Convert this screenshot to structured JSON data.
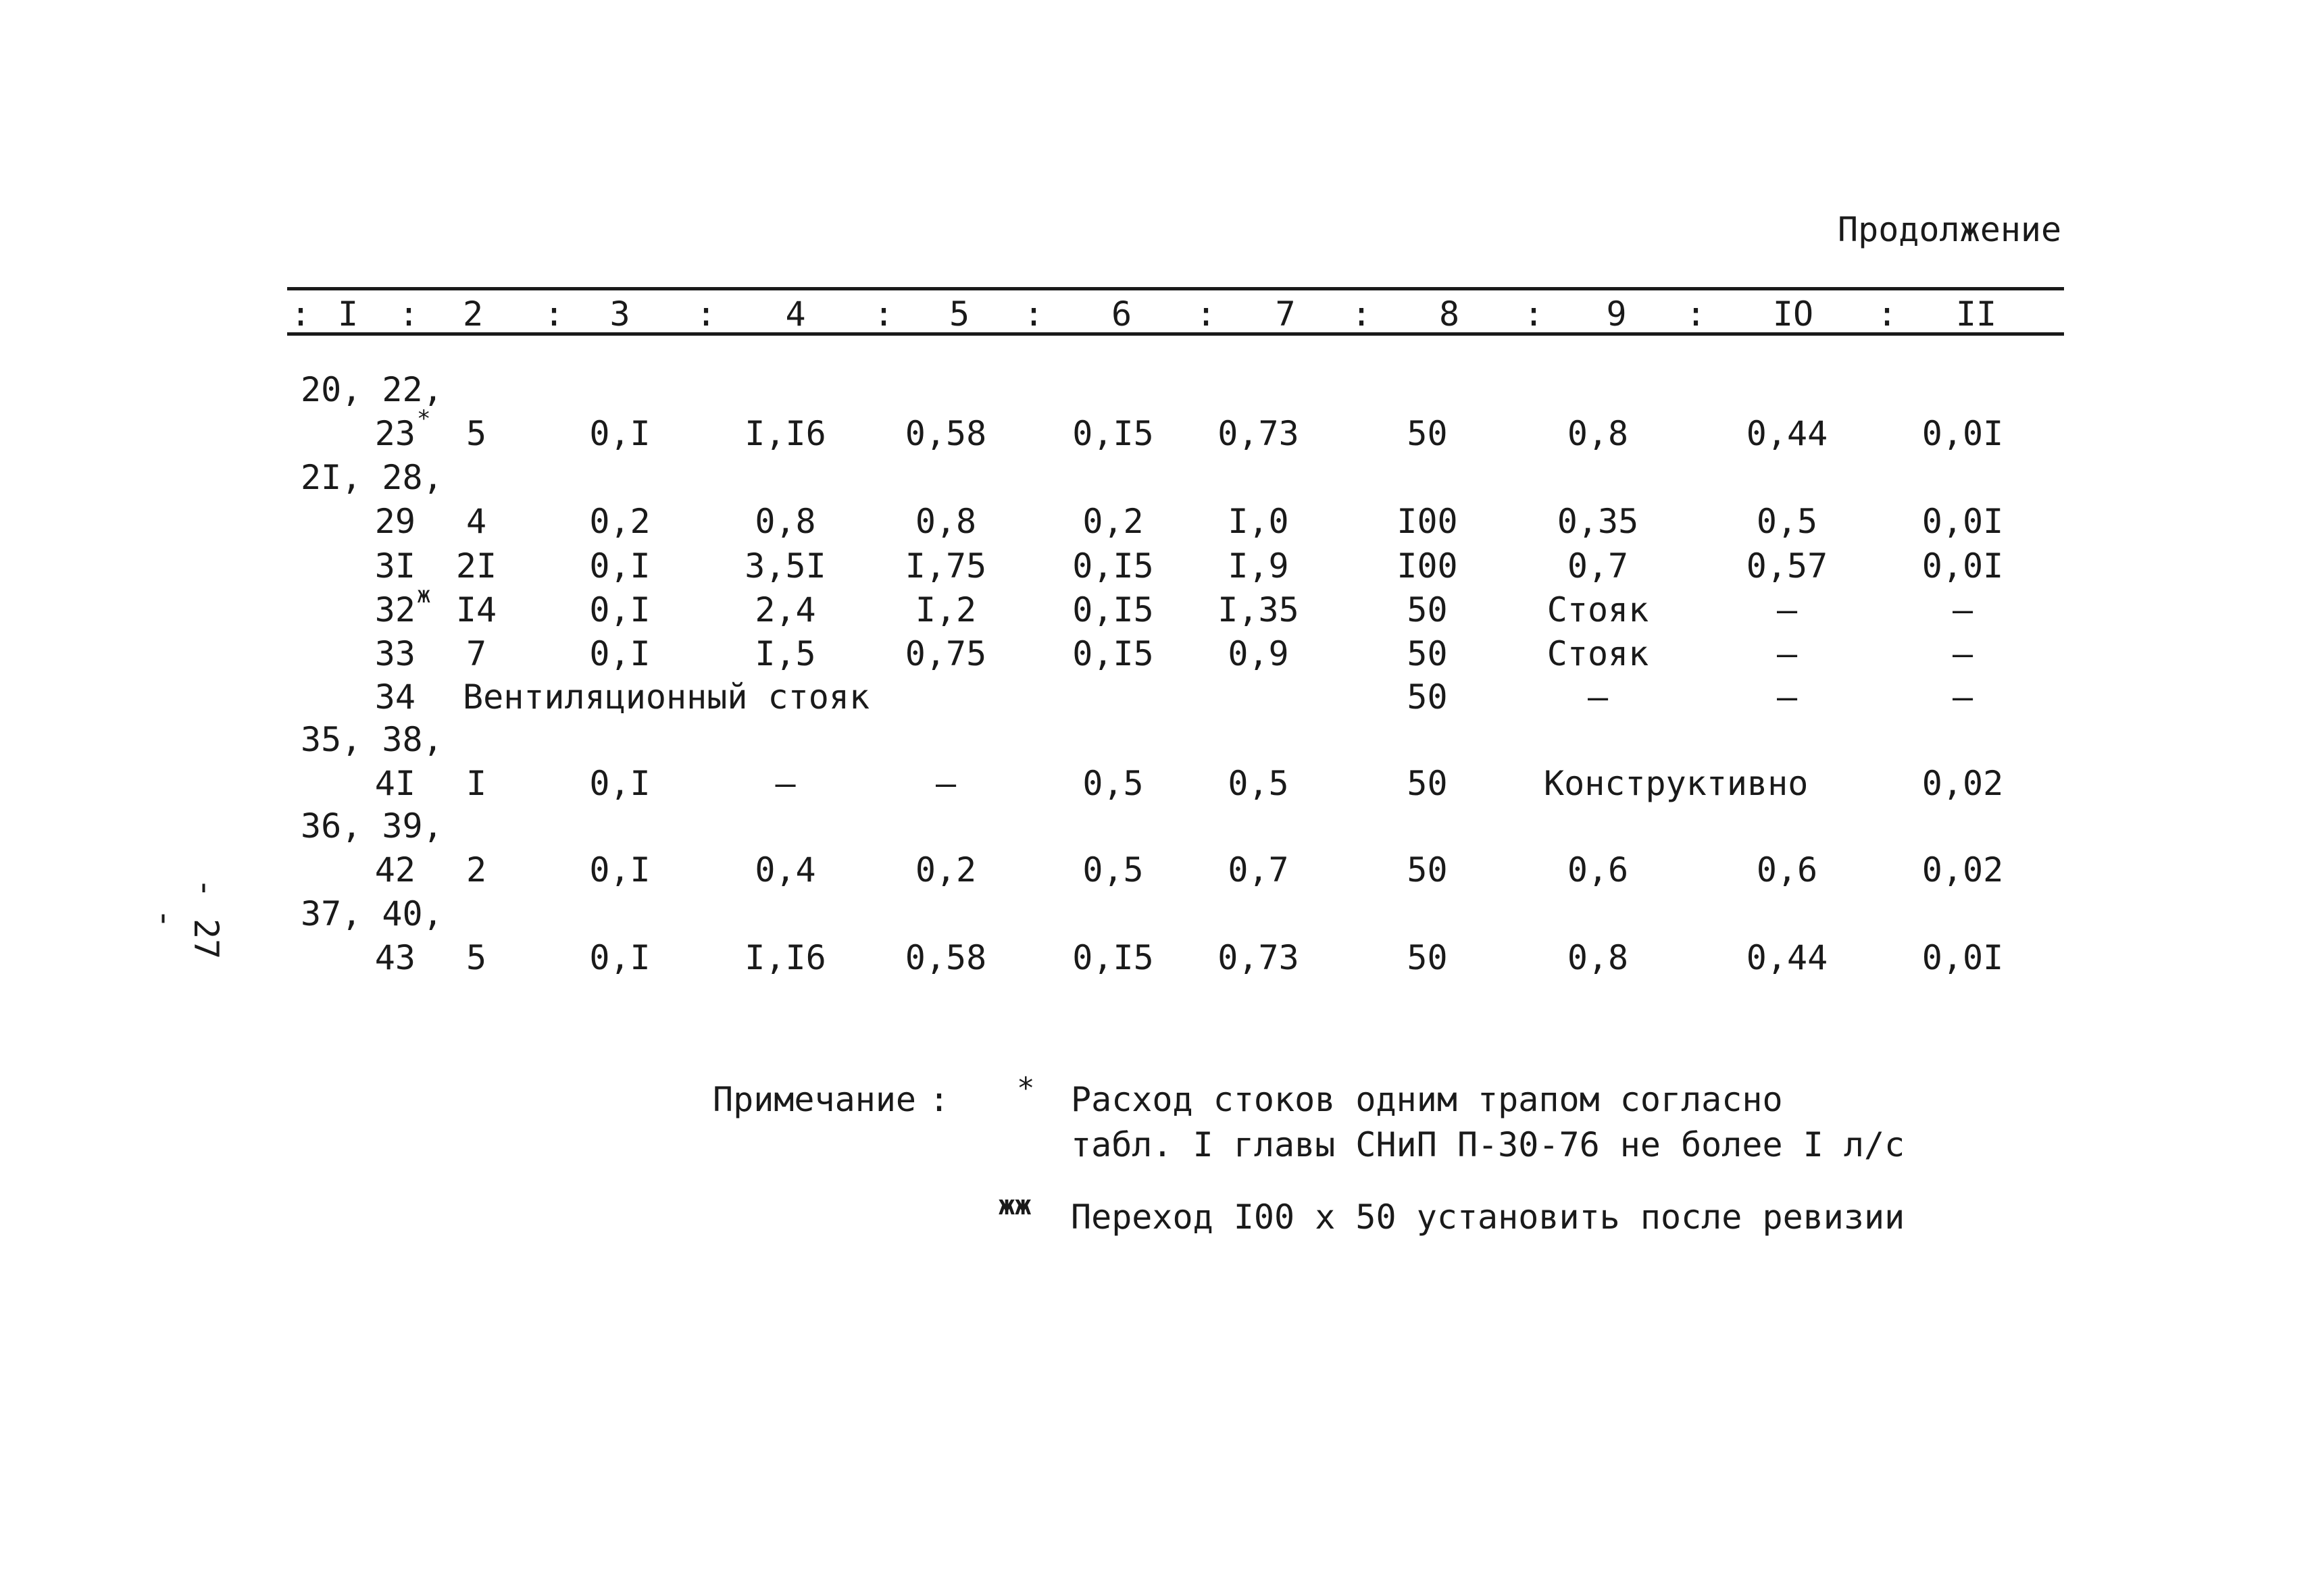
{
  "continuation": "Продолжение",
  "header": {
    "cols": [
      "I",
      "2",
      "3",
      "4",
      "5",
      "6",
      "7",
      "8",
      "9",
      "IO",
      "II"
    ],
    "separator": ":"
  },
  "rows": [
    {
      "label1": "20, 22,",
      "label2": "23",
      "mark": "*",
      "c2": "5",
      "c3": "0,I",
      "c4": "I,I6",
      "c5": "0,58",
      "c6": "0,I5",
      "c7": "0,73",
      "c8": "50",
      "c9": "0,8",
      "c10": "0,44",
      "c11": "0,0I"
    },
    {
      "label1": "2I, 28,",
      "label2": "29",
      "c2": "4",
      "c3": "0,2",
      "c4": "0,8",
      "c5": "0,8",
      "c6": "0,2",
      "c7": "I,0",
      "c8": "I00",
      "c9": "0,35",
      "c10": "0,5",
      "c11": "0,0I"
    },
    {
      "label2": "3I",
      "c2": "2I",
      "c3": "0,I",
      "c4": "3,5I",
      "c5": "I,75",
      "c6": "0,I5",
      "c7": "I,9",
      "c8": "I00",
      "c9": "0,7",
      "c10": "0,57",
      "c11": "0,0I"
    },
    {
      "label2": "32",
      "mark": "ж",
      "c2": "I4",
      "c3": "0,I",
      "c4": "2,4",
      "c5": "I,2",
      "c6": "0,I5",
      "c7": "I,35",
      "c8": "50",
      "c9": "Стояк",
      "c10": "–",
      "c11": "–"
    },
    {
      "label2": "33",
      "c2": "7",
      "c3": "0,I",
      "c4": "I,5",
      "c5": "0,75",
      "c6": "0,I5",
      "c7": "0,9",
      "c8": "50",
      "c9": "Стояк",
      "c10": "–",
      "c11": "–"
    },
    {
      "label2": "34",
      "c2span": "Вентиляционный стояк",
      "c8": "50",
      "c9": "–",
      "c10": "–",
      "c11": "–"
    },
    {
      "label1": "35, 38,",
      "label2": "4I",
      "c2": "I",
      "c3": "0,I",
      "c4": "–",
      "c5": "–",
      "c6": "0,5",
      "c7": "0,5",
      "c8": "50",
      "c9span": "Конструктивно",
      "c11": "0,02"
    },
    {
      "label1": "36, 39,",
      "label2": "42",
      "c2": "2",
      "c3": "0,I",
      "c4": "0,4",
      "c5": "0,2",
      "c6": "0,5",
      "c7": "0,7",
      "c8": "50",
      "c9": "0,6",
      "c10": "0,6",
      "c11": "0,02"
    },
    {
      "label1": "37, 40,",
      "label2": "43",
      "c2": "5",
      "c3": "0,I",
      "c4": "I,I6",
      "c5": "0,58",
      "c6": "0,I5",
      "c7": "0,73",
      "c8": "50",
      "c9": "0,8",
      "c10": "0,44",
      "c11": "0,0I"
    }
  ],
  "note": {
    "label": "Примечание",
    "colon": ":",
    "items": [
      {
        "mark": "*",
        "lines": [
          "Расход стоков одним трапом согласно",
          "табл. I главы СНиП П-30-76 не более I л/с"
        ]
      },
      {
        "mark": "жж",
        "lines": [
          "Переход I00 x 50 установить после ревизии"
        ]
      }
    ]
  },
  "page_number": "- 27 -"
}
